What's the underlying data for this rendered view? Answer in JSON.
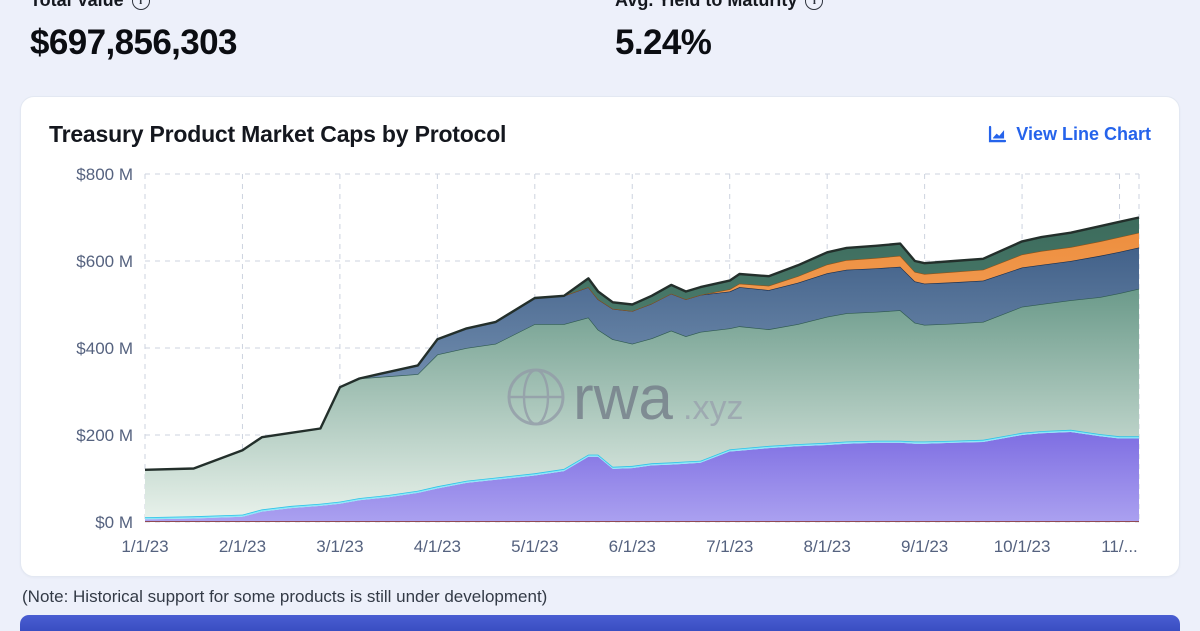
{
  "header": {
    "stats": [
      {
        "label": "Total Value",
        "value": "$697,856,303"
      },
      {
        "label": "Avg. Yield to Maturity",
        "value": "5.24%"
      }
    ]
  },
  "card": {
    "title": "Treasury Product Market Caps by Protocol",
    "view_toggle_label": "View Line Chart",
    "note": "(Note: Historical support for some products is still under development)"
  },
  "watermark": {
    "name": "rwa",
    "tld": ".xyz"
  },
  "colors": {
    "accent_blue": "#2563eb",
    "page_bg": "#edf0fa",
    "card_bg": "#ffffff",
    "grid": "#cdd3df",
    "tick_text": "#55627f",
    "next_section_strip": "#4257c9"
  },
  "chart_data": {
    "type": "area",
    "stacked": true,
    "title": "Treasury Product Market Caps by Protocol",
    "x_unit": "months (1 = 1/1/23), values in $M",
    "xlim": [
      1,
      11.2
    ],
    "ylim": [
      0,
      800
    ],
    "grid": "dashed",
    "y_ticks": [
      0,
      200,
      400,
      600,
      800
    ],
    "y_tick_labels": [
      "$0 M",
      "$200 M",
      "$400 M",
      "$600 M",
      "$800 M"
    ],
    "x_tick_positions": [
      1,
      2,
      3,
      4,
      5,
      6,
      7,
      8,
      9,
      10,
      11
    ],
    "x_tick_labels": [
      "1/1/23",
      "2/1/23",
      "3/1/23",
      "4/1/23",
      "5/1/23",
      "6/1/23",
      "7/1/23",
      "8/1/23",
      "9/1/23",
      "10/1/23",
      "11/..."
    ],
    "x": [
      1.0,
      1.5,
      2.0,
      2.2,
      2.5,
      2.8,
      3.0,
      3.2,
      3.5,
      3.8,
      4.0,
      4.3,
      4.6,
      5.0,
      5.3,
      5.55,
      5.65,
      5.8,
      6.0,
      6.2,
      6.4,
      6.55,
      6.7,
      7.0,
      7.1,
      7.4,
      7.7,
      8.0,
      8.2,
      8.5,
      8.75,
      8.9,
      9.0,
      9.3,
      9.6,
      10.0,
      10.2,
      10.5,
      10.8,
      11.0,
      11.2
    ],
    "series": [
      {
        "name": "series-maroon",
        "color": "#a14848",
        "edge": "#7e3636",
        "edge_width": 1,
        "values": [
          2,
          2,
          2,
          2,
          2,
          2,
          2,
          2,
          2,
          2,
          2,
          2,
          2,
          2,
          2,
          2,
          2,
          2,
          2,
          2,
          2,
          2,
          2,
          2,
          2,
          2,
          2,
          2,
          2,
          2,
          2,
          2,
          2,
          2,
          2,
          2,
          2,
          2,
          2,
          2,
          2
        ]
      },
      {
        "name": "series-purple",
        "gradient": [
          "#7e6ee2",
          "#aaa0f0"
        ],
        "values": [
          4,
          6,
          10,
          22,
          30,
          35,
          40,
          48,
          55,
          65,
          75,
          88,
          95,
          105,
          115,
          148,
          148,
          120,
          122,
          128,
          130,
          132,
          134,
          160,
          162,
          168,
          172,
          175,
          178,
          180,
          180,
          178,
          178,
          180,
          182,
          198,
          202,
          205,
          195,
          190,
          190
        ]
      },
      {
        "name": "series-cyan",
        "color": "#8ce7f8",
        "edge": "#2fc4e8",
        "edge_width": 1.6,
        "values": [
          5,
          5,
          5,
          5,
          5,
          5,
          5,
          5,
          5,
          5,
          5,
          5,
          5,
          5,
          5,
          5,
          5,
          5,
          5,
          5,
          5,
          5,
          5,
          5,
          5,
          5,
          5,
          5,
          5,
          5,
          5,
          5,
          5,
          5,
          5,
          5,
          5,
          5,
          5,
          5,
          5
        ]
      },
      {
        "name": "series-green",
        "gradient": [
          "#6b9a8a",
          "#e7f1ea"
        ],
        "edge": "#2f5a50",
        "edge_width": 1.3,
        "values": [
          109,
          110,
          148,
          166,
          168,
          173,
          263,
          275,
          273,
          268,
          303,
          305,
          308,
          343,
          333,
          315,
          287,
          293,
          281,
          287,
          303,
          288,
          296,
          278,
          281,
          268,
          276,
          290,
          295,
          296,
          300,
          273,
          268,
          269,
          271,
          290,
          292,
          298,
          315,
          329,
          339
        ]
      },
      {
        "name": "series-steel-blue",
        "gradient": [
          "#426189",
          "#8fa9c6"
        ],
        "edge": "#1a2f4f",
        "edge_width": 1.3,
        "values": [
          0,
          0,
          0,
          0,
          0,
          0,
          0,
          0,
          10,
          20,
          35,
          45,
          50,
          60,
          65,
          70,
          70,
          70,
          75,
          80,
          85,
          85,
          85,
          85,
          90,
          90,
          95,
          100,
          100,
          100,
          100,
          95,
          95,
          95,
          95,
          90,
          90,
          90,
          95,
          95,
          95
        ]
      },
      {
        "name": "series-orange",
        "gradient": [
          "#ee8f3f",
          "#f6b277"
        ],
        "edge": "#8f5218",
        "edge_width": 1.2,
        "values": [
          0,
          0,
          0,
          0,
          0,
          0,
          0,
          0,
          0,
          0,
          0,
          0,
          0,
          0,
          0,
          0,
          0,
          0,
          0,
          0,
          0,
          0,
          0,
          5,
          8,
          10,
          15,
          20,
          22,
          24,
          25,
          22,
          22,
          24,
          25,
          30,
          32,
          32,
          33,
          34,
          34
        ]
      },
      {
        "name": "series-dark-teal",
        "gradient": [
          "#3c6b5c",
          "#5d9080"
        ],
        "edge": "#232f2b",
        "edge_width": 2.4,
        "values": [
          0,
          0,
          0,
          0,
          0,
          0,
          0,
          0,
          0,
          0,
          0,
          0,
          0,
          0,
          0,
          20,
          18,
          15,
          15,
          18,
          20,
          18,
          18,
          20,
          22,
          22,
          25,
          28,
          28,
          28,
          28,
          25,
          25,
          25,
          25,
          30,
          32,
          33,
          35,
          35,
          35
        ]
      }
    ]
  }
}
